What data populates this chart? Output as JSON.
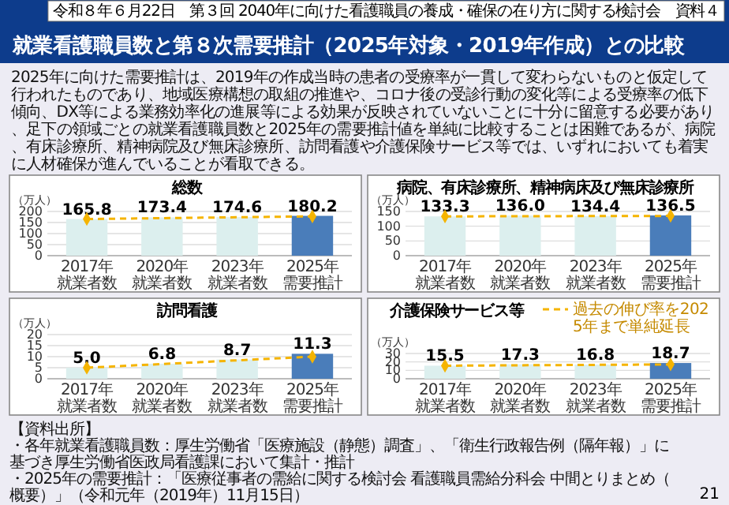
{
  "chart_data": [
    {
      "type": "other",
      "title": "就業看護職員数と第８次需要推計（2025年対象・2019年作成）との比較",
      "subtitle": "2025年に向けた需要推計は、2019年の作成当時の患者の受療率が一貫して変わらないものと仮定して行われたものであり、地域医療構想の取組の推進や、コロナ後の受診行動の変化等による受療率の低下傾向、DX等による業務効率化の進展等による効果が反映されていないことに十分に留意する必要があり、足下の領域ごとの就業看護職員数と2025年の需要推計値を単純に比較することは困難であるが、病院、有床診療所、精神病院及び無床診療所、訪問看護や介護保険サービス等では、いずれにおいても着実に人材確保が進んでいることが看取できる。",
      "annotations": [
        "令和８年６月22日　第３回 2040年に向けた看護職員の養成・確保の在り方に関する検討会　資料４",
        "【資料出所】",
        "・各年就業看護職員数：厚生労働省「医療施設（静態）調査」、「衛生行政報告例（隔年報）」に基づき厚生労働省医政局看護課において集計・推計",
        "・2025年の需要推計：「医療従事者の需給に関する検討会 看護職員需給分科会 中間とりまとめ（概要）」（令和元年（2019年）11月15日）",
        "21"
      ]
    },
    {
      "type": "bar",
      "title": "総数",
      "ylabel": "（万人）",
      "categories": [
        "2017年就業者数",
        "2020年就業者数",
        "2023年就業者数",
        "2025年需要推計"
      ],
      "ylim": [
        0,
        200
      ],
      "yticks": [
        0,
        50,
        100,
        150,
        200
      ],
      "grid": "y",
      "legend": false,
      "series": [
        {
          "type": "bar",
          "values": [
            165.8,
            173.4,
            174.6,
            180.2
          ],
          "colors": [
            "#dcefee",
            "#dcefee",
            "#dcefee",
            "#4a7dba"
          ],
          "value_labels": [
            "165.8",
            "173.4",
            "174.6",
            "180.2"
          ]
        },
        {
          "type": "line",
          "values": [
            165.8,
            null,
            null,
            178
          ],
          "color": "#f5b400",
          "line_style": "dashed",
          "marker": "diamond"
        }
      ]
    },
    {
      "type": "bar",
      "title": "病院、有床診療所、精神病床及び無床診療所",
      "ylabel": "（万人）",
      "categories": [
        "2017年就業者数",
        "2020年就業者数",
        "2023年就業者数",
        "2025年需要推計"
      ],
      "ylim": [
        0,
        150
      ],
      "yticks": [
        0,
        50,
        100,
        150
      ],
      "grid": "y",
      "legend": false,
      "series": [
        {
          "type": "bar",
          "values": [
            133.3,
            136.0,
            134.4,
            136.5
          ],
          "colors": [
            "#dcefee",
            "#dcefee",
            "#dcefee",
            "#4a7dba"
          ],
          "value_labels": [
            "133.3",
            "136.0",
            "134.4",
            "136.5"
          ]
        },
        {
          "type": "line",
          "values": [
            133.3,
            null,
            null,
            135
          ],
          "color": "#f5b400",
          "line_style": "dashed",
          "marker": "diamond"
        }
      ]
    },
    {
      "type": "bar",
      "title": "訪問看護",
      "ylabel": "（万人）",
      "categories": [
        "2017年就業者数",
        "2020年就業者数",
        "2023年就業者数",
        "2025年需要推計"
      ],
      "ylim": [
        0,
        20
      ],
      "yticks": [
        0,
        5,
        10,
        15,
        20
      ],
      "grid": "y",
      "legend": false,
      "series": [
        {
          "type": "bar",
          "values": [
            5.0,
            6.8,
            8.7,
            11.3
          ],
          "colors": [
            "#dcefee",
            "#dcefee",
            "#dcefee",
            "#4a7dba"
          ],
          "value_labels": [
            "5.0",
            "6.8",
            "8.7",
            "11.3"
          ]
        },
        {
          "type": "line",
          "values": [
            5.0,
            null,
            null,
            10
          ],
          "color": "#f5b400",
          "line_style": "dashed",
          "marker": "diamond"
        }
      ]
    },
    {
      "type": "bar",
      "title": "介護保険サービス等",
      "ylabel": "（万人）",
      "categories": [
        "2017年就業者数",
        "2020年就業者数",
        "2023年就業者数",
        "2025年需要推計"
      ],
      "ylim": [
        0,
        30
      ],
      "yticks": [
        0,
        10,
        20,
        30
      ],
      "grid": "y",
      "legend": "top right",
      "series": [
        {
          "type": "bar",
          "values": [
            15.5,
            17.3,
            16.8,
            18.7
          ],
          "colors": [
            "#dcefee",
            "#dcefee",
            "#dcefee",
            "#4a7dba"
          ],
          "value_labels": [
            "15.5",
            "17.3",
            "16.8",
            "18.7"
          ]
        },
        {
          "type": "line",
          "name": "過去の伸び率を2025年まで単純延長",
          "values": [
            15.5,
            null,
            null,
            17
          ],
          "color": "#f5b400",
          "line_style": "dashed",
          "marker": "diamond"
        }
      ]
    }
  ]
}
